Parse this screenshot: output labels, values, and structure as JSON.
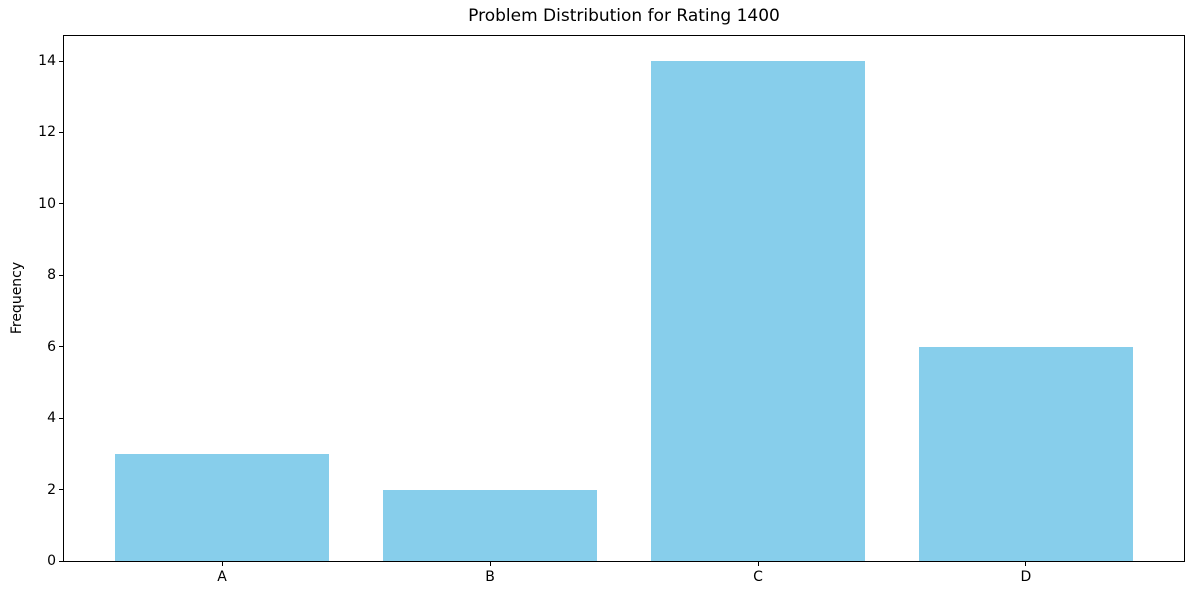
{
  "chart_data": {
    "type": "bar",
    "title": "Problem Distribution for Rating 1400",
    "xlabel": "",
    "ylabel": "Frequency",
    "categories": [
      "A",
      "B",
      "C",
      "D"
    ],
    "values": [
      3,
      2,
      14,
      6
    ],
    "yticks": [
      0,
      2,
      4,
      6,
      8,
      10,
      12,
      14
    ],
    "ylim": [
      0,
      14.7
    ],
    "xlim": [
      -0.59,
      3.59
    ],
    "bar_width_data": 0.8,
    "bar_color": "#87CEEB",
    "grid": false,
    "legend": null
  },
  "figure": {
    "background_color": "#ffffff",
    "spine_color": "#000000",
    "text_color": "#000000"
  }
}
